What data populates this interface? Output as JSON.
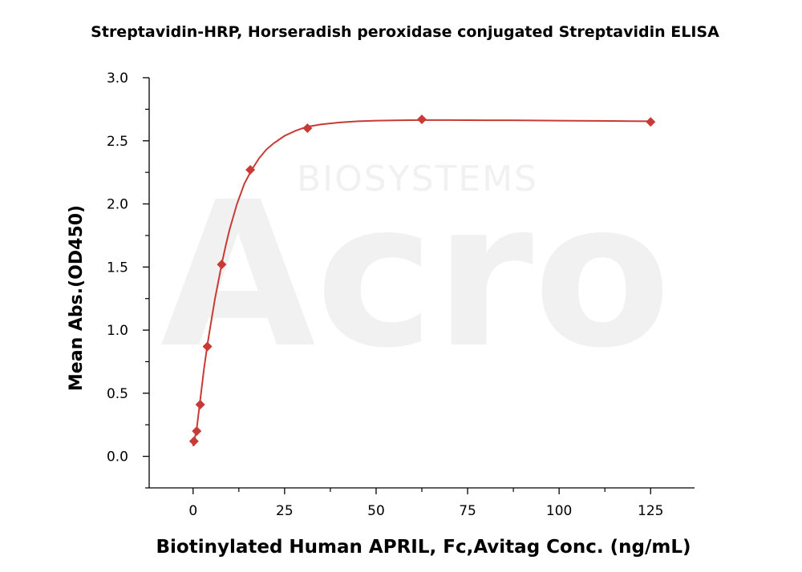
{
  "chart_data": {
    "type": "scatter",
    "title": "Streptavidin-HRP, Horseradish peroxidase conjugated Streptavidin ELISA",
    "xlabel": "Biotinylated Human APRIL, Fc,Avitag Conc. (ng/mL)",
    "ylabel": "Mean Abs.(OD450)",
    "xlim": [
      -12,
      137
    ],
    "ylim": [
      -0.25,
      3.0
    ],
    "xticks": [
      0,
      25,
      50,
      75,
      100,
      125
    ],
    "yticks": [
      0.0,
      0.5,
      1.0,
      1.5,
      2.0,
      2.5,
      3.0
    ],
    "xtick_labels": [
      "0",
      "25",
      "50",
      "75",
      "100",
      "125"
    ],
    "ytick_labels": [
      "0.0",
      "0.5",
      "1.0",
      "1.5",
      "2.0",
      "2.5",
      "3.0"
    ],
    "grid": false,
    "legend": "none",
    "marker": "diamond",
    "color": "#c83a35",
    "series": [
      {
        "x": [
          0.24,
          0.98,
          1.95,
          3.91,
          7.81,
          15.63,
          31.25,
          62.5,
          125
        ],
        "y": [
          0.12,
          0.2,
          0.41,
          0.87,
          1.52,
          2.27,
          2.6,
          2.67,
          2.65
        ]
      }
    ],
    "fit": {
      "x": [
        0,
        1,
        2,
        3,
        4,
        5,
        6,
        7,
        8,
        9,
        10,
        12,
        14,
        16,
        18,
        20,
        22,
        25,
        28,
        31,
        35,
        40,
        45,
        50,
        55,
        62.5,
        70,
        80,
        90,
        100,
        110,
        120,
        125
      ],
      "y": [
        0.08,
        0.22,
        0.46,
        0.7,
        0.9,
        1.08,
        1.25,
        1.4,
        1.55,
        1.68,
        1.8,
        2.0,
        2.16,
        2.27,
        2.36,
        2.43,
        2.48,
        2.54,
        2.58,
        2.61,
        2.63,
        2.645,
        2.655,
        2.66,
        2.662,
        2.664,
        2.664,
        2.663,
        2.662,
        2.66,
        2.658,
        2.656,
        2.655
      ]
    },
    "watermark": {
      "brand": "Acro",
      "sub": "BIOSYSTEMS"
    }
  }
}
